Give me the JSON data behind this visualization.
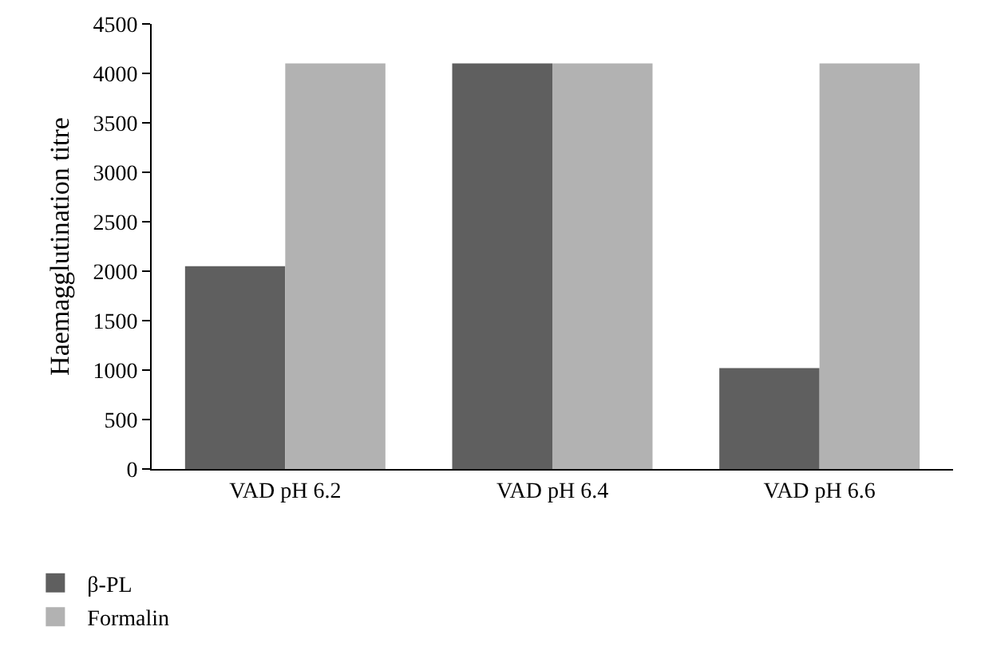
{
  "chart_data": {
    "type": "bar",
    "ylabel": "Haemagglutination titre",
    "categories": [
      "VAD pH 6.2",
      "VAD pH 6.4",
      "VAD pH 6.6"
    ],
    "series": [
      {
        "name": "β-PL",
        "color": "#5f5f5f",
        "values": [
          2050,
          4100,
          1020
        ]
      },
      {
        "name": "Formalin",
        "color": "#b2b2b2",
        "values": [
          4100,
          4100,
          4100
        ]
      }
    ],
    "ylim": [
      0,
      4500
    ],
    "yticks": [
      0,
      500,
      1000,
      1500,
      2000,
      2500,
      3000,
      3500,
      4000,
      4500
    ],
    "grid": false,
    "legend": "bottom left"
  }
}
